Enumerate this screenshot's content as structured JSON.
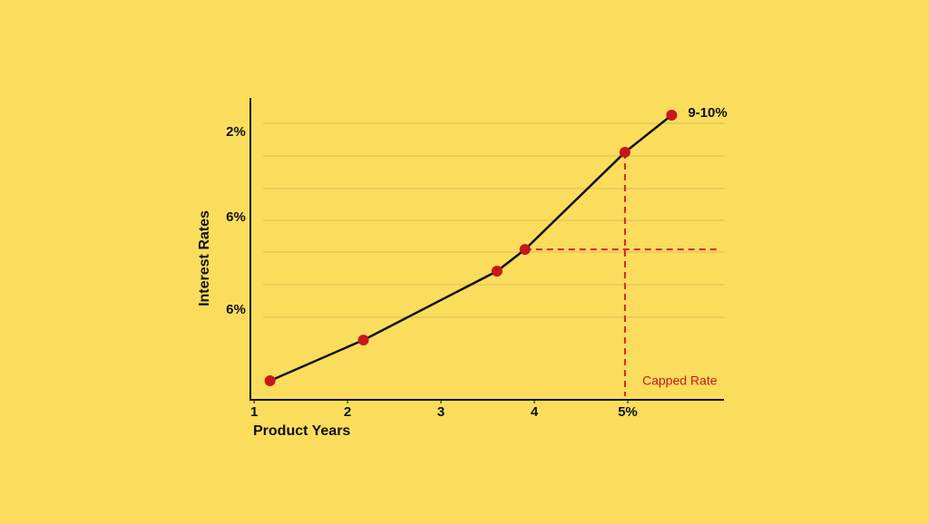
{
  "chart_data": {
    "type": "line",
    "x_label": "Product Years",
    "y_label": "Interest Rates",
    "x": [
      1.17,
      2.17,
      3.6,
      3.9,
      4.97,
      5.47
    ],
    "series": [
      {
        "color": "#111111",
        "marker_color": "#c8161b",
        "values": [
          0.63,
          1.98,
          4.26,
          4.98,
          8.2,
          9.43
        ]
      }
    ],
    "xlim": [
      0.96,
      6.03
    ],
    "ylim": [
      0,
      10
    ],
    "xticks": [
      1,
      2,
      3,
      4,
      {
        "value": 5,
        "label": "5%"
      }
    ],
    "y_tick_labels": [
      "2%",
      "6%",
      "6%"
    ],
    "end_label": "9-10%",
    "annotation": "Capped Rate",
    "grid": true
  }
}
